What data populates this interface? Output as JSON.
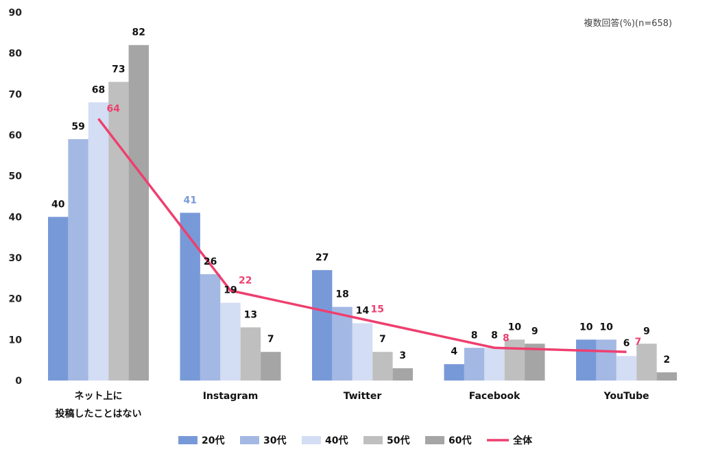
{
  "chart_data": {
    "type": "bar",
    "note": "複数回答(%)(n=658)",
    "categories": [
      [
        "ネット上に",
        "投稿したことはない"
      ],
      [
        "Instagram"
      ],
      [
        "Twitter"
      ],
      [
        "Facebook"
      ],
      [
        "YouTube"
      ]
    ],
    "series": [
      {
        "name": "20代",
        "color": "#7899d8",
        "values": [
          40,
          41,
          27,
          4,
          10
        ]
      },
      {
        "name": "30代",
        "color": "#a4b8e4",
        "values": [
          59,
          26,
          18,
          8,
          10
        ]
      },
      {
        "name": "40代",
        "color": "#d3ddf3",
        "values": [
          68,
          19,
          14,
          8,
          6
        ]
      },
      {
        "name": "50代",
        "color": "#bfbfbf",
        "values": [
          73,
          13,
          7,
          10,
          9
        ]
      },
      {
        "name": "60代",
        "color": "#a5a5a5",
        "values": [
          82,
          7,
          3,
          9,
          2
        ]
      }
    ],
    "overall": {
      "name": "全体",
      "color": "#ee3f6e",
      "values": [
        64,
        22,
        15,
        8,
        7
      ]
    },
    "highlight_labels": [
      {
        "series": 0,
        "category": 1,
        "color": "#7899d8"
      }
    ],
    "ylim": [
      0,
      90
    ],
    "yticks": [
      0,
      10,
      20,
      30,
      40,
      50,
      60,
      70,
      80,
      90
    ],
    "legend": "bottom",
    "grid": false
  }
}
